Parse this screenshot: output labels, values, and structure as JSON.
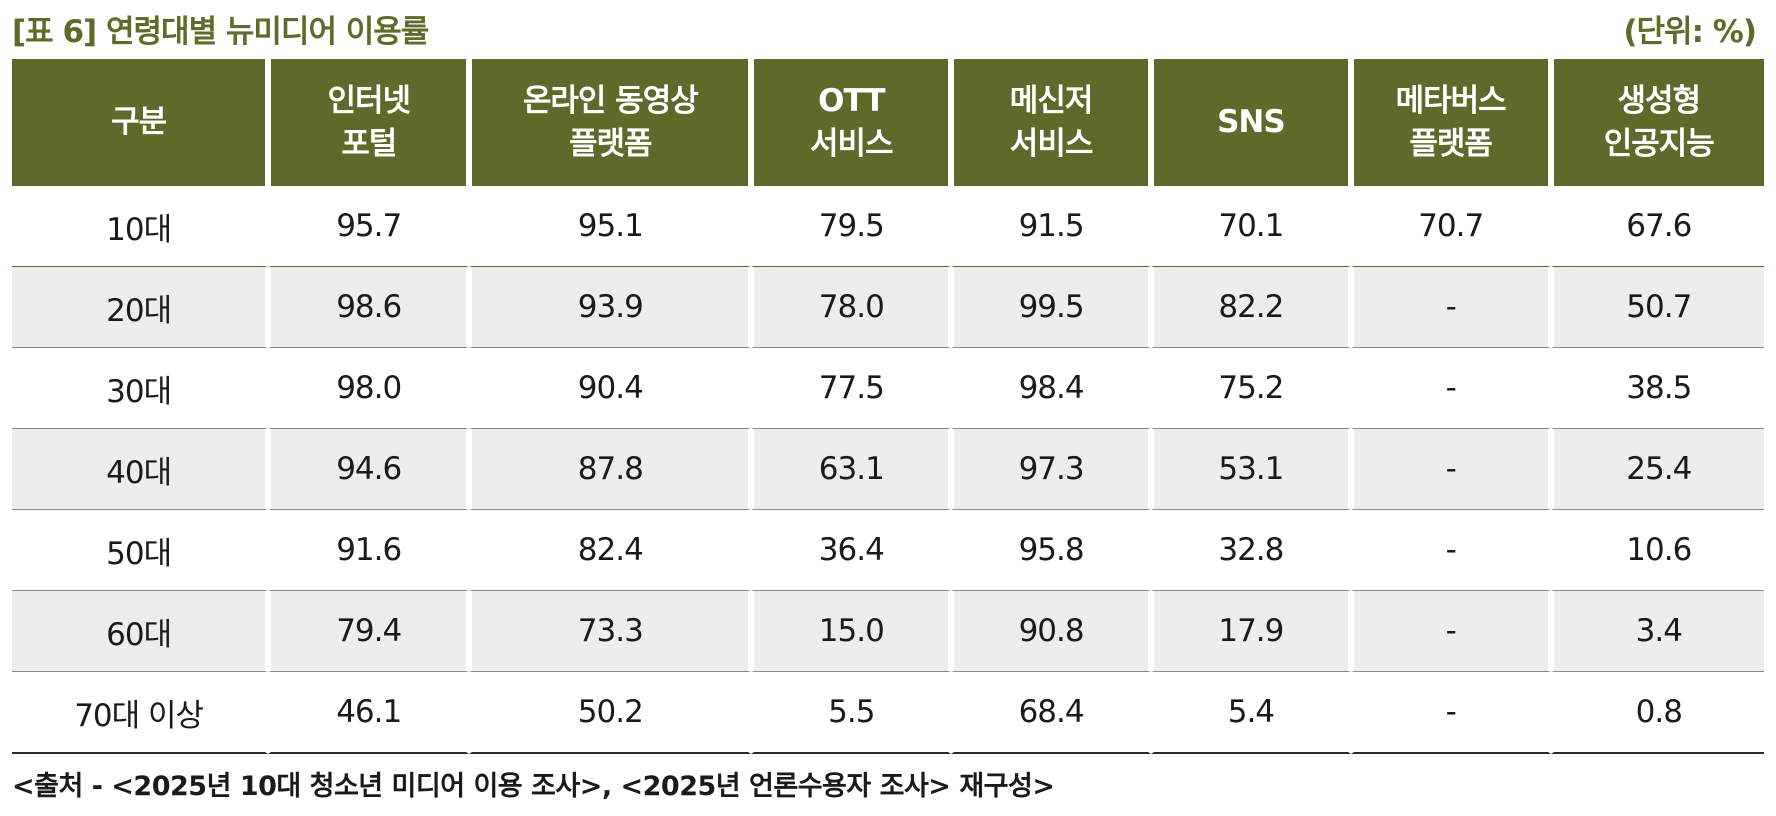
{
  "title": "[표 6] 연령대별 뉴미디어 이용률",
  "unit": "(단위: %)",
  "table": {
    "headers": [
      {
        "line1": "구분",
        "line2": ""
      },
      {
        "line1": "인터넷",
        "line2": "포털"
      },
      {
        "line1": "온라인 동영상",
        "line2": "플랫폼"
      },
      {
        "line1": "OTT",
        "line2": "서비스"
      },
      {
        "line1": "메신저",
        "line2": "서비스"
      },
      {
        "line1": "SNS",
        "line2": ""
      },
      {
        "line1": "메타버스",
        "line2": "플랫폼"
      },
      {
        "line1": "생성형",
        "line2": "인공지능"
      }
    ],
    "rows": [
      [
        "10대",
        "95.7",
        "95.1",
        "79.5",
        "91.5",
        "70.1",
        "70.7",
        "67.6"
      ],
      [
        "20대",
        "98.6",
        "93.9",
        "78.0",
        "99.5",
        "82.2",
        "-",
        "50.7"
      ],
      [
        "30대",
        "98.0",
        "90.4",
        "77.5",
        "98.4",
        "75.2",
        "-",
        "38.5"
      ],
      [
        "40대",
        "94.6",
        "87.8",
        "63.1",
        "97.3",
        "53.1",
        "-",
        "25.4"
      ],
      [
        "50대",
        "91.6",
        "82.4",
        "36.4",
        "95.8",
        "32.8",
        "-",
        "10.6"
      ],
      [
        "60대",
        "79.4",
        "73.3",
        "15.0",
        "90.8",
        "17.9",
        "-",
        "3.4"
      ],
      [
        "70대 이상",
        "46.1",
        "50.2",
        "5.5",
        "68.4",
        "5.4",
        "-",
        "0.8"
      ]
    ]
  },
  "source": "<출처 - <2025년 10대 청소년 미디어 이용 조사>, <2025년 언론수용자 조사> 재구성>",
  "colors": {
    "header_bg": "#5d6a2a",
    "title_color": "#5e6b2a",
    "row_shade": "#ededed"
  }
}
